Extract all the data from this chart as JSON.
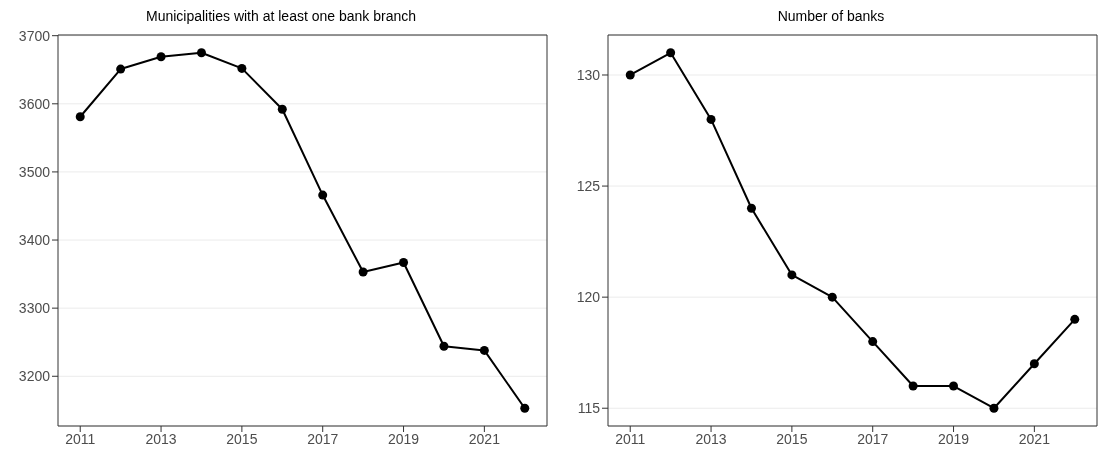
{
  "chart_data": [
    {
      "type": "line",
      "title": "Municipalities with at least one bank branch",
      "x": [
        2011,
        2012,
        2013,
        2014,
        2015,
        2016,
        2017,
        2018,
        2019,
        2020,
        2021,
        2022
      ],
      "series": [
        {
          "color": "#000000",
          "values": [
            3581,
            3651,
            3669,
            3675,
            3652,
            3592,
            3466,
            3353,
            3367,
            3244,
            3238,
            3153
          ]
        }
      ],
      "xlim": [
        2010.45,
        2022.55
      ],
      "xticks": [
        2011,
        2013,
        2015,
        2017,
        2019,
        2021
      ],
      "ylim": [
        3127,
        3701
      ],
      "yticks": [
        3200,
        3300,
        3400,
        3500,
        3600,
        3700
      ],
      "grid": "y",
      "legend": false,
      "marker": "circle",
      "line_style": "solid"
    },
    {
      "type": "line",
      "title": "Number of banks",
      "x": [
        2011,
        2012,
        2013,
        2014,
        2015,
        2016,
        2017,
        2018,
        2019,
        2020,
        2021,
        2022
      ],
      "series": [
        {
          "color": "#000000",
          "values": [
            130,
            131,
            128,
            124,
            121,
            120,
            118,
            116,
            116,
            115,
            117,
            119
          ]
        }
      ],
      "xlim": [
        2010.45,
        2022.55
      ],
      "xticks": [
        2011,
        2013,
        2015,
        2017,
        2019,
        2021
      ],
      "ylim": [
        114.2,
        131.8
      ],
      "yticks": [
        115,
        120,
        125,
        130
      ],
      "grid": "y",
      "legend": false,
      "marker": "circle",
      "line_style": "solid"
    }
  ]
}
